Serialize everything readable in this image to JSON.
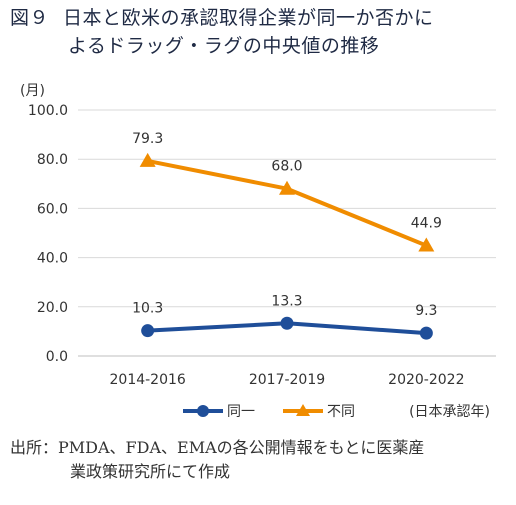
{
  "figure": {
    "number": "図９",
    "title_line1": "日本と欧米の承認取得企業が同一か否かに",
    "title_line2": "よるドラッグ・ラグの中央値の推移"
  },
  "source_note": {
    "prefix": "出所：",
    "line1": "PMDA、FDA、EMAの各公開情報をもとに医薬産",
    "line2": "業政策研究所にて作成"
  },
  "chart_data": {
    "type": "line",
    "title": "日本と欧米の承認取得企業が同一か否かによるドラッグ・ラグの中央値の推移",
    "categories": [
      "2014-2016",
      "2017-2019",
      "2020-2022"
    ],
    "series": [
      {
        "name": "同一",
        "values": [
          10.3,
          13.3,
          9.3
        ],
        "color": "#1f4e99",
        "marker": "circle"
      },
      {
        "name": "不同",
        "values": [
          79.3,
          68.0,
          44.9
        ],
        "color": "#f08c00",
        "marker": "triangle"
      }
    ],
    "data_labels": {
      "同一": [
        "10.3",
        "13.3",
        "9.3"
      ],
      "不同": [
        "79.3",
        "68.0",
        "44.9"
      ]
    },
    "ylabel": "(月)",
    "xlabel": "(日本承認年)",
    "ylim": [
      0,
      100
    ],
    "yticks": [
      "0.0",
      "20.0",
      "40.0",
      "60.0",
      "80.0",
      "100.0"
    ],
    "grid": true,
    "legend_position": "bottom"
  }
}
